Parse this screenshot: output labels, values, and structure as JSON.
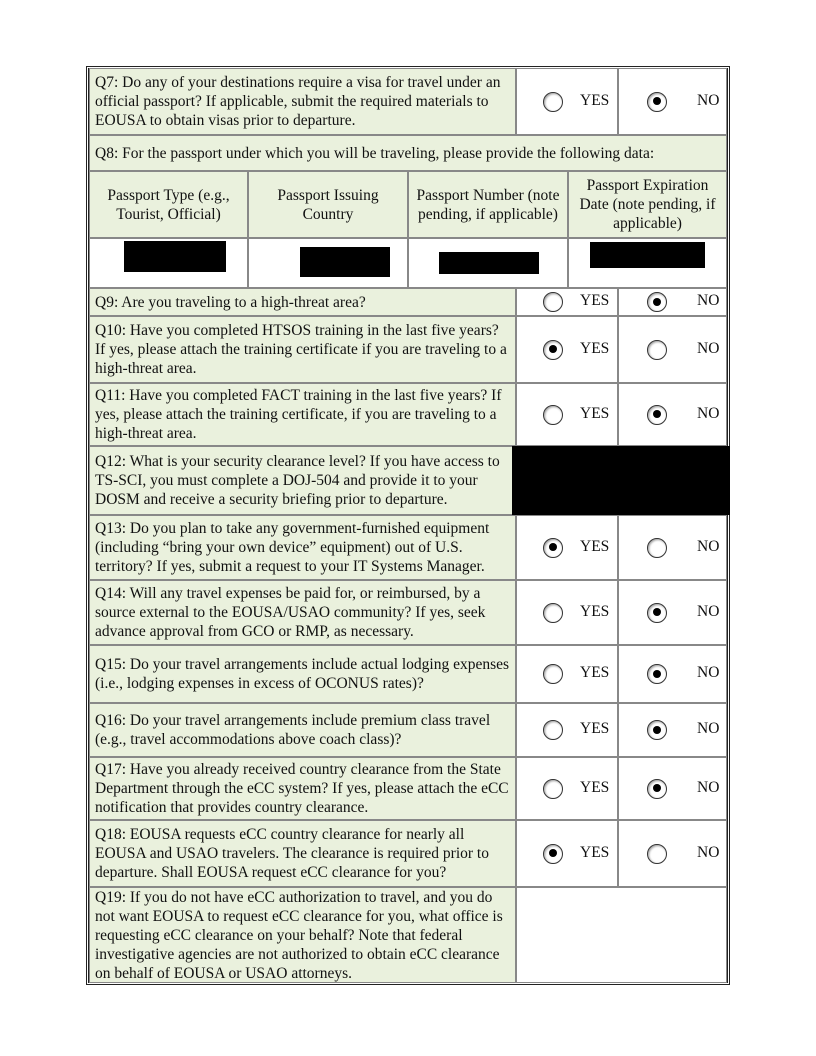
{
  "questions": [
    {
      "id": "q7",
      "text": "Q7: Do any of your destinations require a visa for travel under an official passport? If applicable, submit the required materials to EOUSA to obtain visas prior to departure.",
      "answer": "NO"
    },
    {
      "id": "q8",
      "text": "Q8: For the passport under which you will be traveling, please provide the following data:"
    },
    {
      "id": "q9",
      "text": "Q9: Are you traveling to a high-threat area?",
      "answer": "NO"
    },
    {
      "id": "q10",
      "text": "Q10: Have you completed HTSOS training in the last five years?  If yes, please attach the training certificate if you are traveling to a high-threat area.",
      "answer": "YES"
    },
    {
      "id": "q11",
      "text": "Q11: Have you completed FACT training in the last five years? If yes, please attach the training certificate, if you are traveling to a high-threat area.",
      "answer": "NO"
    },
    {
      "id": "q12",
      "text": "Q12: What is your security clearance level? If you have access to TS-SCI, you must complete a DOJ-504 and provide it to your DOSM and receive a security briefing prior to departure.",
      "answer": "[redacted]"
    },
    {
      "id": "q13",
      "text": "Q13: Do you plan to take any government-furnished equipment (including “bring your own device” equipment) out of U.S. territory?  If yes, submit a request to your IT Systems Manager.",
      "answer": "YES"
    },
    {
      "id": "q14",
      "text": "Q14: Will any travel expenses be paid for, or reimbursed, by a source external to the EOUSA/USAO community?  If yes, seek advance approval from GCO or RMP, as necessary.",
      "answer": "NO"
    },
    {
      "id": "q15",
      "text": "Q15: Do your travel arrangements include actual lodging expenses (i.e., lodging expenses in excess of OCONUS rates)?",
      "answer": "NO"
    },
    {
      "id": "q16",
      "text": "Q16: Do your travel arrangements include premium class travel (e.g., travel accommodations above coach class)?",
      "answer": "NO"
    },
    {
      "id": "q17",
      "text": "Q17: Have you already received country clearance from the State Department through the eCC system?  If yes, please attach the eCC notification that provides country clearance.",
      "answer": "NO"
    },
    {
      "id": "q18",
      "text": "Q18: EOUSA requests eCC country clearance for nearly all EOUSA and USAO travelers. The clearance is required prior to departure.  Shall EOUSA request eCC clearance for you?",
      "answer": "YES"
    },
    {
      "id": "q19",
      "text": "Q19:  If you do not have eCC authorization to travel, and you do not want EOUSA to request eCC clearance for you, what office is requesting eCC clearance on your behalf?  Note that federal investigative agencies are not authorized to obtain eCC clearance on behalf of EOUSA or USAO attorneys.",
      "answer": ""
    }
  ],
  "options": {
    "yes": "YES",
    "no": "NO"
  },
  "passport_table": {
    "headers": [
      "Passport Type (e.g., Tourist, Official)",
      "Passport Issuing Country",
      "Passport Number (note pending, if applicable)",
      "Passport Expiration Date (note pending, if applicable)"
    ],
    "values": [
      "[redacted]",
      "[redacted]",
      "[redacted]",
      "[redacted]"
    ]
  },
  "colors": {
    "question_bg": "#eaf1dd",
    "redaction": "#000000"
  }
}
